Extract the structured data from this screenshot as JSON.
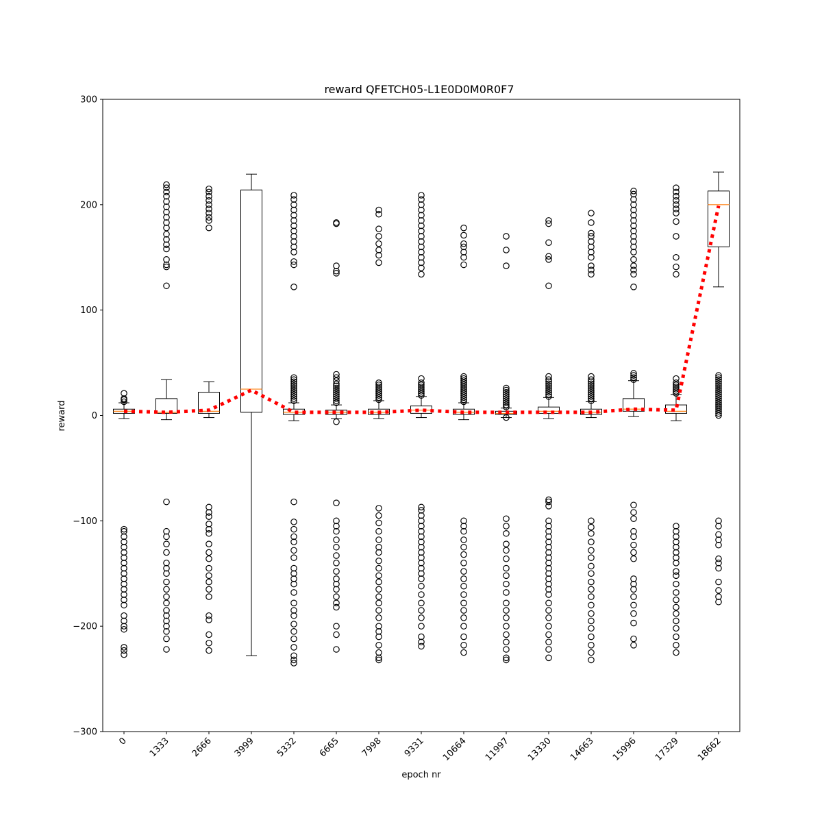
{
  "chart_data": {
    "type": "box",
    "title": "reward QFETCH05-L1E0D0M0R0F7",
    "xlabel": "epoch nr",
    "ylabel": "reward",
    "ylim": [
      -300,
      300
    ],
    "yticks": [
      -300,
      -200,
      -100,
      0,
      100,
      200,
      300
    ],
    "ytick_labels": [
      "−300",
      "−200",
      "−100",
      "0",
      "100",
      "200",
      "300"
    ],
    "categories": [
      "0",
      "1333",
      "2666",
      "3999",
      "5332",
      "6665",
      "7998",
      "9331",
      "10664",
      "11997",
      "13330",
      "14663",
      "15996",
      "17329",
      "18662"
    ],
    "boxes": [
      {
        "q1": 2,
        "median": 4,
        "q3": 6,
        "whisker_low": -3,
        "whisker_high": 12,
        "outliers_high": [
          13,
          15,
          16,
          21
        ],
        "outliers_low": [
          -108,
          -110,
          -115,
          -120,
          -125,
          -130,
          -135,
          -140,
          -145,
          -150,
          -155,
          -160,
          -165,
          -170,
          -175,
          -180,
          -190,
          -195,
          -200,
          -203,
          -220,
          -223,
          -227
        ]
      },
      {
        "q1": 2,
        "median": 3,
        "q3": 16,
        "whisker_low": -4,
        "whisker_high": 34,
        "outliers_high": [
          123,
          141,
          143,
          148,
          158,
          162,
          167,
          172,
          178,
          183,
          188,
          193,
          198,
          203,
          208,
          212,
          216,
          219
        ],
        "outliers_low": [
          -82,
          -110,
          -115,
          -122,
          -130,
          -140,
          -145,
          -150,
          -158,
          -165,
          -172,
          -178,
          -185,
          -190,
          -195,
          -200,
          -205,
          -212,
          -222
        ]
      },
      {
        "q1": 2,
        "median": 4,
        "q3": 22,
        "whisker_low": -2,
        "whisker_high": 32,
        "outliers_high": [
          178,
          185,
          188,
          192,
          196,
          200,
          204,
          208,
          212,
          215
        ],
        "outliers_low": [
          -87,
          -92,
          -96,
          -103,
          -108,
          -112,
          -122,
          -130,
          -136,
          -145,
          -152,
          -158,
          -165,
          -172,
          -190,
          -194,
          -208,
          -216,
          -223
        ]
      },
      {
        "q1": 3,
        "median": 25,
        "q3": 214,
        "whisker_low": -228,
        "whisker_high": 229,
        "outliers_high": [],
        "outliers_low": []
      },
      {
        "q1": 1,
        "median": 3,
        "q3": 6,
        "whisker_low": -5,
        "whisker_high": 12,
        "outliers_high": [
          14,
          16,
          18,
          20,
          22,
          24,
          26,
          28,
          30,
          32,
          34,
          36,
          122,
          143,
          146,
          155,
          160,
          165,
          170,
          175,
          180,
          185,
          190,
          195,
          200,
          205,
          209
        ],
        "outliers_low": [
          -82,
          -101,
          -108,
          -115,
          -120,
          -128,
          -135,
          -145,
          -150,
          -155,
          -160,
          -168,
          -178,
          -185,
          -190,
          -198,
          -205,
          -212,
          -220,
          -228,
          -232,
          -235
        ]
      },
      {
        "q1": 1,
        "median": 3,
        "q3": 5,
        "whisker_low": -3,
        "whisker_high": 10,
        "outliers_high": [
          12,
          14,
          16,
          18,
          20,
          22,
          24,
          26,
          28,
          30,
          33,
          36,
          39,
          135,
          137,
          142,
          182,
          183
        ],
        "outliers_low": [
          -6,
          -83,
          -100,
          -105,
          -110,
          -118,
          -125,
          -133,
          -140,
          -148,
          -155,
          -160,
          -165,
          -172,
          -178,
          -182,
          -200,
          -208,
          -222
        ]
      },
      {
        "q1": 1,
        "median": 3,
        "q3": 6,
        "whisker_low": -3,
        "whisker_high": 14,
        "outliers_high": [
          15,
          17,
          19,
          21,
          23,
          25,
          27,
          29,
          31,
          145,
          152,
          157,
          163,
          170,
          177,
          191,
          195
        ],
        "outliers_low": [
          -88,
          -95,
          -102,
          -110,
          -118,
          -125,
          -130,
          -138,
          -145,
          -152,
          -158,
          -165,
          -172,
          -178,
          -185,
          -192,
          -200,
          -205,
          -210,
          -218,
          -225,
          -230,
          -232
        ]
      },
      {
        "q1": 2,
        "median": 5,
        "q3": 9,
        "whisker_low": -2,
        "whisker_high": 18,
        "outliers_high": [
          19,
          21,
          23,
          25,
          27,
          29,
          31,
          35,
          134,
          140,
          145,
          150,
          155,
          160,
          165,
          170,
          175,
          180,
          185,
          190,
          195,
          200,
          205,
          209
        ],
        "outliers_low": [
          -87,
          -90,
          -95,
          -100,
          -105,
          -110,
          -115,
          -120,
          -125,
          -130,
          -135,
          -140,
          -145,
          -150,
          -155,
          -162,
          -170,
          -178,
          -185,
          -192,
          -200,
          -210,
          -215,
          -219
        ]
      },
      {
        "q1": 1,
        "median": 3,
        "q3": 6,
        "whisker_low": -4,
        "whisker_high": 12,
        "outliers_high": [
          13,
          15,
          17,
          19,
          21,
          23,
          25,
          27,
          29,
          31,
          33,
          35,
          37,
          143,
          150,
          155,
          160,
          163,
          171,
          178
        ],
        "outliers_low": [
          -100,
          -105,
          -110,
          -118,
          -125,
          -132,
          -140,
          -148,
          -155,
          -162,
          -170,
          -178,
          -185,
          -192,
          -200,
          -210,
          -218,
          -225
        ]
      },
      {
        "q1": 1,
        "median": 2,
        "q3": 4,
        "whisker_low": -2,
        "whisker_high": 7,
        "outliers_high": [
          8,
          10,
          12,
          14,
          16,
          18,
          20,
          22,
          24,
          26,
          142,
          157,
          170
        ],
        "outliers_low": [
          -2,
          -98,
          -105,
          -112,
          -122,
          -128,
          -136,
          -145,
          -152,
          -160,
          -168,
          -178,
          -185,
          -192,
          -200,
          -208,
          -215,
          -222,
          -230,
          -232
        ]
      },
      {
        "q1": 2,
        "median": 4,
        "q3": 8,
        "whisker_low": -3,
        "whisker_high": 17,
        "outliers_high": [
          18,
          20,
          22,
          24,
          26,
          28,
          30,
          32,
          34,
          37,
          123,
          148,
          151,
          164,
          182,
          185
        ],
        "outliers_low": [
          -80,
          -82,
          -86,
          -100,
          -105,
          -110,
          -115,
          -120,
          -125,
          -130,
          -135,
          -140,
          -145,
          -150,
          -155,
          -160,
          -165,
          -170,
          -178,
          -185,
          -192,
          -200,
          -208,
          -215,
          -222,
          -230
        ]
      },
      {
        "q1": 1,
        "median": 3,
        "q3": 6,
        "whisker_low": -2,
        "whisker_high": 13,
        "outliers_high": [
          14,
          16,
          18,
          20,
          22,
          24,
          26,
          28,
          30,
          32,
          34,
          37,
          134,
          138,
          142,
          150,
          155,
          160,
          165,
          170,
          173,
          183,
          192
        ],
        "outliers_low": [
          -100,
          -106,
          -112,
          -120,
          -128,
          -135,
          -143,
          -150,
          -158,
          -165,
          -172,
          -180,
          -188,
          -195,
          -202,
          -210,
          -218,
          -225,
          -232
        ]
      },
      {
        "q1": 4,
        "median": 6,
        "q3": 16,
        "whisker_low": -1,
        "whisker_high": 33,
        "outliers_high": [
          34,
          36,
          38,
          40,
          122,
          134,
          138,
          142,
          148,
          155,
          160,
          165,
          170,
          175,
          180,
          185,
          190,
          195,
          200,
          205,
          210,
          213
        ],
        "outliers_low": [
          -85,
          -92,
          -98,
          -110,
          -115,
          -123,
          -130,
          -136,
          -155,
          -160,
          -165,
          -172,
          -180,
          -188,
          -197,
          -212,
          -218
        ]
      },
      {
        "q1": 2,
        "median": 4,
        "q3": 10,
        "whisker_low": -5,
        "whisker_high": 20,
        "outliers_high": [
          21,
          23,
          25,
          27,
          29,
          31,
          35,
          134,
          141,
          150,
          170,
          184,
          192,
          196,
          200,
          204,
          208,
          212,
          216
        ],
        "outliers_low": [
          -105,
          -110,
          -115,
          -120,
          -125,
          -130,
          -135,
          -140,
          -148,
          -152,
          -160,
          -168,
          -175,
          -182,
          -188,
          -195,
          -202,
          -210,
          -218,
          -225
        ]
      },
      {
        "q1": 160,
        "median": 200,
        "q3": 213,
        "whisker_low": 122,
        "whisker_high": 231,
        "outliers_high": [],
        "outliers_low": [
          0,
          2,
          4,
          6,
          8,
          10,
          12,
          14,
          16,
          18,
          20,
          22,
          24,
          26,
          28,
          30,
          32,
          34,
          36,
          38,
          -100,
          -105,
          -113,
          -118,
          -123,
          -136,
          -140,
          -145,
          -158,
          -166,
          -172,
          -177
        ]
      }
    ],
    "mean_line": {
      "values": [
        4,
        3,
        5,
        24,
        3,
        3,
        3,
        5,
        3,
        3,
        3,
        3,
        6,
        5,
        199
      ],
      "color": "#ff0000",
      "style": "dotted"
    },
    "colors": {
      "median": "#ff7f0e",
      "mean_line": "#ff0000",
      "box": "#000000"
    },
    "grid": false
  }
}
